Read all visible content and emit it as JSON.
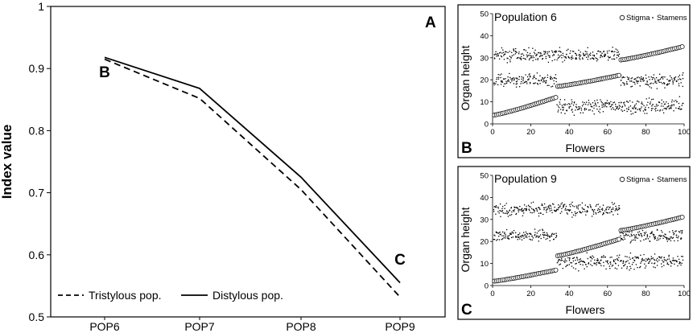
{
  "chart_data": [
    {
      "type": "line",
      "panel_letter": "A",
      "ylabel": "Index value",
      "xlabel": "",
      "categories": [
        "POP6",
        "POP7",
        "POP8",
        "POP9"
      ],
      "ylim": [
        0.5,
        1.0
      ],
      "y_ticks": [
        "0.5",
        "0.6",
        "0.7",
        "0.8",
        "0.9",
        "1"
      ],
      "series": [
        {
          "name": "Tristylous pop.",
          "style": "dashed",
          "values": [
            0.915,
            0.852,
            0.705,
            0.532
          ]
        },
        {
          "name": "Distylous pop.",
          "style": "solid",
          "values": [
            0.918,
            0.868,
            0.725,
            0.555
          ]
        }
      ],
      "annotations": [
        {
          "text": "B",
          "x": "POP6",
          "y": 0.895
        },
        {
          "text": "C",
          "x": "POP9",
          "y": 0.593
        }
      ],
      "legend_position": "bottom-left",
      "grid": false
    },
    {
      "type": "scatter",
      "panel_letter": "B",
      "title": "Population 6",
      "xlabel": "Flowers",
      "ylabel": "Organ height",
      "xlim": [
        0,
        100
      ],
      "ylim": [
        0,
        50
      ],
      "x_ticks": [
        "0",
        "20",
        "40",
        "60",
        "80",
        "100"
      ],
      "y_ticks": [
        "0",
        "10",
        "20",
        "30",
        "40",
        "50"
      ],
      "legend": [
        "Stigma",
        "Stamens"
      ],
      "legend_position": "top-right",
      "stigma_segments": [
        {
          "x": [
            1,
            33
          ],
          "y": [
            4,
            12
          ]
        },
        {
          "x": [
            34,
            66
          ],
          "y": [
            17,
            22
          ]
        },
        {
          "x": [
            67,
            99
          ],
          "y": [
            29,
            35
          ]
        }
      ],
      "stamen_bands": [
        {
          "x": [
            1,
            33
          ],
          "y_mean": 31.5,
          "spread": 2.5
        },
        {
          "x": [
            1,
            33
          ],
          "y_mean": 20,
          "spread": 2.5
        },
        {
          "x": [
            34,
            66
          ],
          "y_mean": 31.5,
          "spread": 2.5
        },
        {
          "x": [
            34,
            66
          ],
          "y_mean": 8,
          "spread": 3
        },
        {
          "x": [
            67,
            99
          ],
          "y_mean": 19.5,
          "spread": 2.5
        },
        {
          "x": [
            67,
            99
          ],
          "y_mean": 8,
          "spread": 3
        }
      ]
    },
    {
      "type": "scatter",
      "panel_letter": "C",
      "title": "Population 9",
      "xlabel": "Flowers",
      "ylabel": "Organ height",
      "xlim": [
        0,
        100
      ],
      "ylim": [
        0,
        50
      ],
      "x_ticks": [
        "0",
        "20",
        "40",
        "60",
        "80",
        "100"
      ],
      "y_ticks": [
        "0",
        "10",
        "20",
        "30",
        "40",
        "50"
      ],
      "legend": [
        "Stigma",
        "Stamens"
      ],
      "legend_position": "top-right",
      "stigma_segments": [
        {
          "x": [
            1,
            33
          ],
          "y": [
            2,
            7
          ]
        },
        {
          "x": [
            34,
            66
          ],
          "y": [
            13.5,
            21
          ]
        },
        {
          "x": [
            67,
            99
          ],
          "y": [
            25,
            31
          ]
        }
      ],
      "stamen_bands": [
        {
          "x": [
            1,
            33
          ],
          "y_mean": 34.5,
          "spread": 2.5
        },
        {
          "x": [
            1,
            33
          ],
          "y_mean": 22.5,
          "spread": 2.5
        },
        {
          "x": [
            34,
            66
          ],
          "y_mean": 34.5,
          "spread": 2.5
        },
        {
          "x": [
            34,
            66
          ],
          "y_mean": 11,
          "spread": 3
        },
        {
          "x": [
            67,
            99
          ],
          "y_mean": 22.5,
          "spread": 2.5
        },
        {
          "x": [
            67,
            99
          ],
          "y_mean": 11,
          "spread": 3
        }
      ]
    }
  ]
}
